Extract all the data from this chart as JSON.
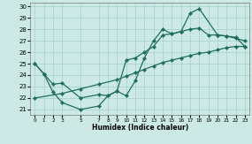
{
  "xlabel": "Humidex (Indice chaleur)",
  "xlim": [
    -0.5,
    23.5
  ],
  "ylim": [
    20.5,
    30.3
  ],
  "yticks": [
    21,
    22,
    23,
    24,
    25,
    26,
    27,
    28,
    29,
    30
  ],
  "xtick_labels": [
    "0",
    "1",
    "2",
    "3",
    "5",
    "7",
    "8",
    "9",
    "10",
    "11",
    "12",
    "13",
    "14",
    "15",
    "16",
    "17",
    "18",
    "19",
    "20",
    "21",
    "22",
    "23"
  ],
  "xtick_positions": [
    0,
    1,
    2,
    3,
    5,
    7,
    8,
    9,
    10,
    11,
    12,
    13,
    14,
    15,
    16,
    17,
    18,
    19,
    20,
    21,
    22,
    23
  ],
  "bg_color": "#cce9e5",
  "grid_color": "#aad4cf",
  "line_color": "#1e6e60",
  "line1_x": [
    0,
    1,
    2,
    3,
    5,
    7,
    8,
    9,
    10,
    11,
    12,
    13,
    14,
    15,
    16,
    17,
    18,
    20,
    21,
    22,
    23
  ],
  "line1_y": [
    25.0,
    24.1,
    22.5,
    21.6,
    21.0,
    21.3,
    22.2,
    22.6,
    22.2,
    23.5,
    25.5,
    27.0,
    28.0,
    27.6,
    27.8,
    29.4,
    29.8,
    27.5,
    27.4,
    27.2,
    27.0
  ],
  "line2_x": [
    0,
    3,
    5,
    7,
    9,
    10,
    11,
    12,
    13,
    14,
    15,
    16,
    17,
    18,
    19,
    20,
    21,
    22,
    23
  ],
  "line2_y": [
    22.0,
    22.4,
    22.8,
    23.2,
    23.6,
    23.9,
    24.2,
    24.5,
    24.8,
    25.1,
    25.3,
    25.5,
    25.7,
    25.9,
    26.0,
    26.2,
    26.4,
    26.5,
    26.5
  ],
  "line3_x": [
    0,
    1,
    2,
    3,
    5,
    7,
    8,
    9,
    10,
    11,
    12,
    13,
    14,
    15,
    16,
    17,
    18,
    19,
    20,
    21,
    22,
    23
  ],
  "line3_y": [
    25.0,
    24.1,
    23.2,
    23.3,
    22.0,
    22.3,
    22.2,
    22.6,
    25.3,
    25.5,
    26.0,
    26.5,
    27.5,
    27.6,
    27.8,
    28.0,
    28.1,
    27.5,
    27.5,
    27.4,
    27.3,
    26.5
  ],
  "markersize": 2.2,
  "linewidth": 0.9
}
